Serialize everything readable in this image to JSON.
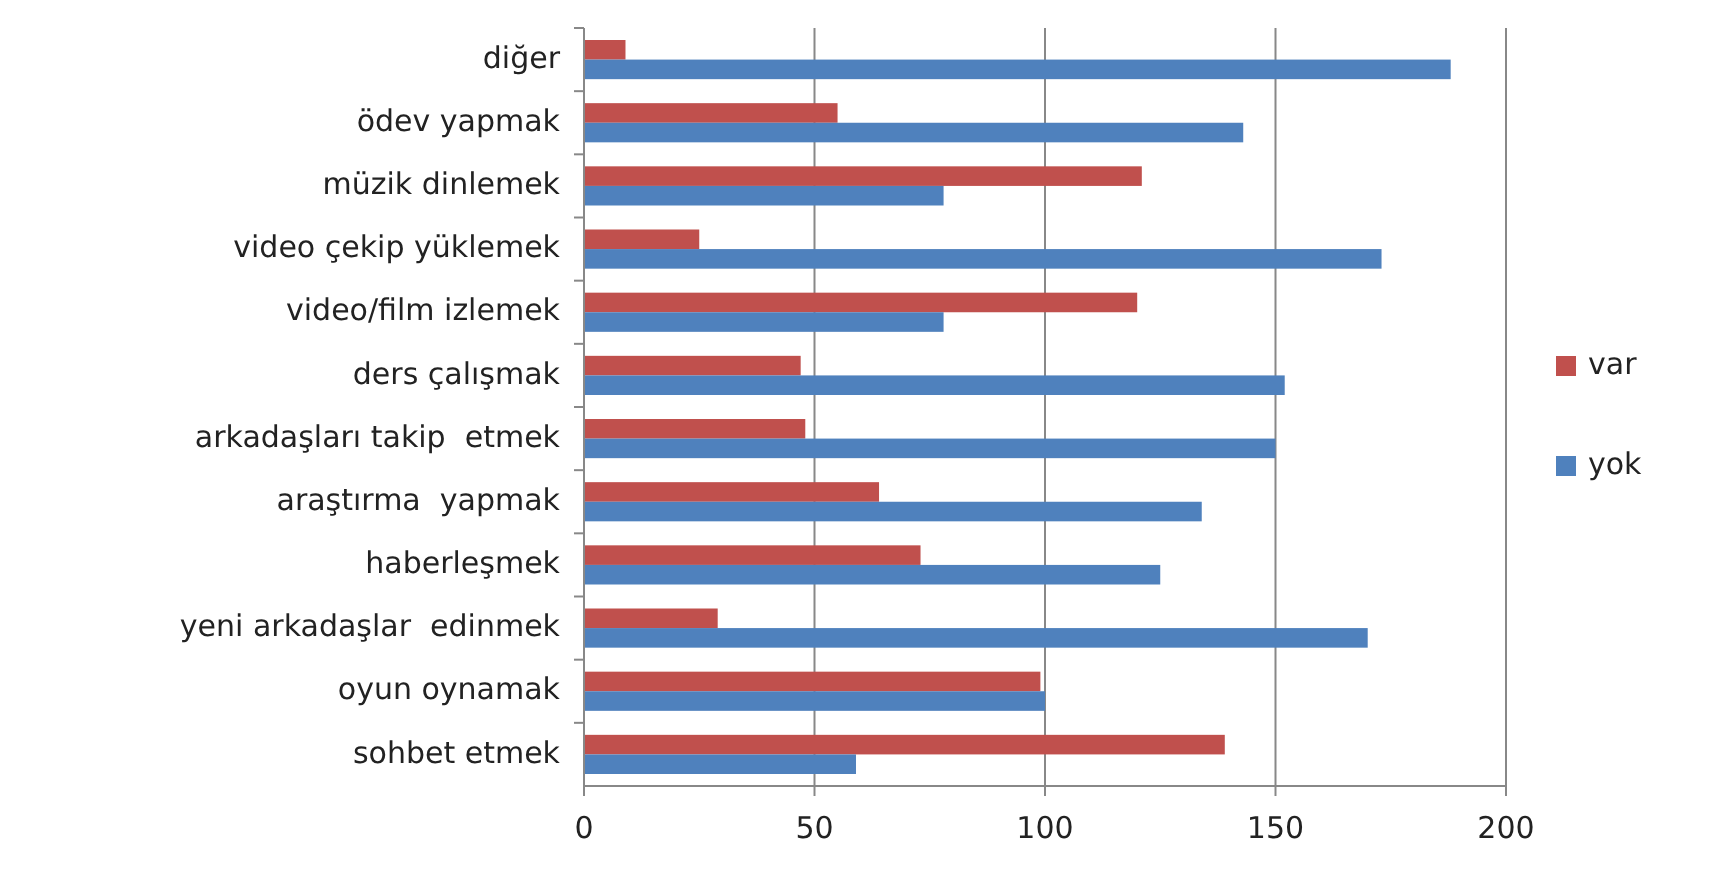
{
  "chart_data": {
    "type": "bar",
    "orientation": "horizontal",
    "categories": [
      "diğer",
      "ödev yapmak",
      "müzik dinlemek",
      "video çekip yüklemek",
      "video/film izlemek",
      "ders çalışmak",
      "arkadaşları takip  etmek",
      "araştırma  yapmak",
      "haberleşmek",
      "yeni arkadaşlar  edinmek",
      "oyun oynamak",
      "sohbet etmek"
    ],
    "series": [
      {
        "name": "var",
        "color": "#c0504d",
        "values": [
          9,
          55,
          121,
          25,
          120,
          47,
          48,
          64,
          73,
          29,
          99,
          139
        ]
      },
      {
        "name": "yok",
        "color": "#4f81bd",
        "values": [
          188,
          143,
          78,
          173,
          78,
          152,
          150,
          134,
          125,
          170,
          100,
          59
        ]
      }
    ],
    "xlim": [
      0,
      200
    ],
    "xticks": [
      0,
      50,
      100,
      150,
      200
    ],
    "grid": "x",
    "legend": "right"
  }
}
